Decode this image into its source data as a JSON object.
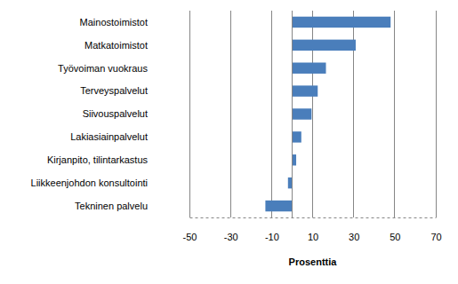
{
  "chart_data": {
    "type": "bar",
    "orientation": "horizontal",
    "categories": [
      "Mainostoimistot",
      "Matkatoimistot",
      "Työvoiman vuokraus",
      "Terveyspalvelut",
      "Siivouspalvelut",
      "Lakiasiainpalvelut",
      "Kirjanpito, tilintarkastus",
      "Liikkeenjohdon konsultointi",
      "Tekninen palvelu"
    ],
    "values": [
      48,
      31,
      16.5,
      12.5,
      9.5,
      4.5,
      2,
      -2,
      -13
    ],
    "color": "#4a7ebb",
    "x_label": "Prosenttia",
    "xlim": [
      -50,
      70
    ],
    "xticks": [
      -50,
      -30,
      -10,
      10,
      30,
      50,
      70
    ],
    "grid": true
  }
}
